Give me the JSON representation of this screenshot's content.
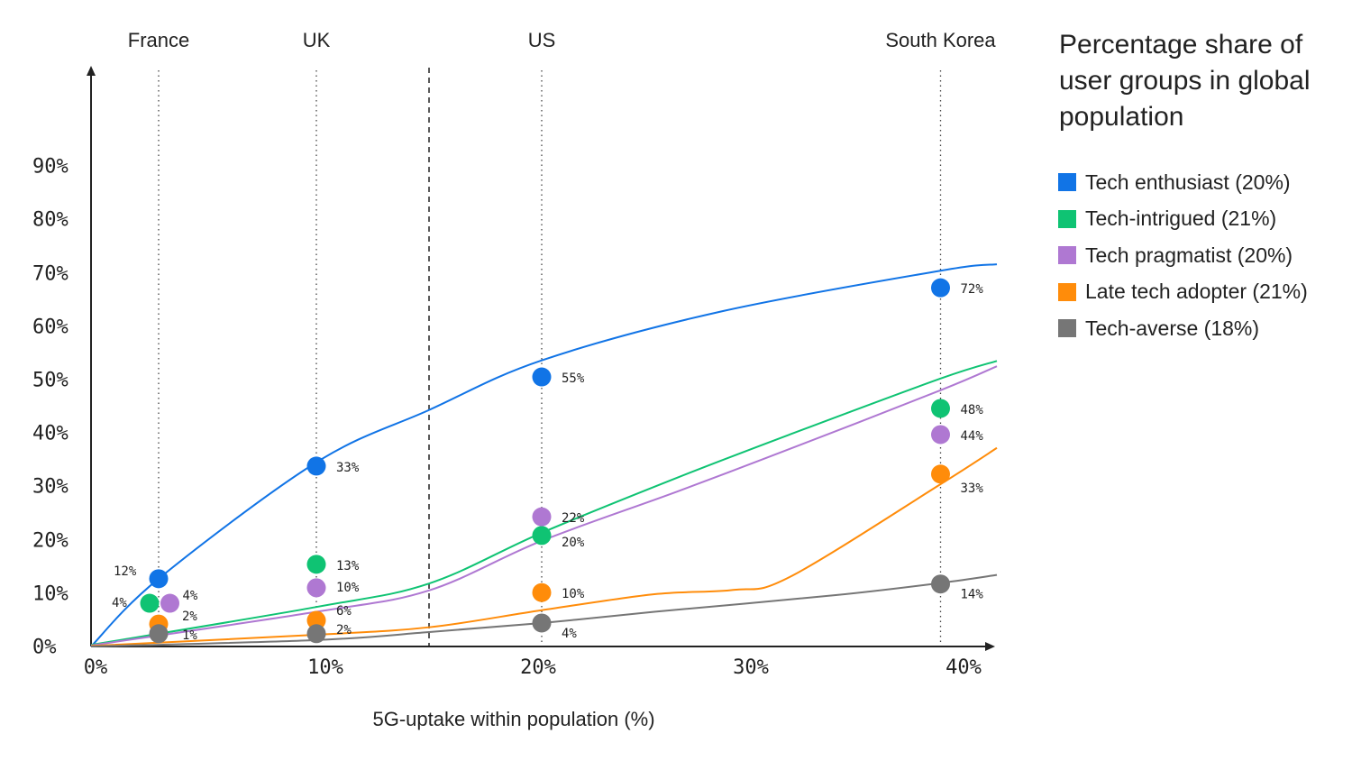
{
  "chart_data": {
    "type": "line",
    "xlabel": "5G-uptake within population (%)",
    "ylabel": "",
    "xlim": [
      0,
      40
    ],
    "ylim": [
      0,
      90
    ],
    "x_ticks": [
      "0%",
      "10%",
      "20%",
      "30%",
      "40%"
    ],
    "y_ticks": [
      "0%",
      "10%",
      "20%",
      "30%",
      "40%",
      "50%",
      "60%",
      "70%",
      "80%",
      "90%"
    ],
    "grid": false,
    "threshold_x": 15,
    "countries": [
      {
        "name": "France",
        "x": 3
      },
      {
        "name": "UK",
        "x": 10
      },
      {
        "name": "US",
        "x": 20
      },
      {
        "name": "South Korea",
        "x": 37.7
      }
    ],
    "legend": {
      "title": "Percentage share of user groups in global population",
      "placement": "right"
    },
    "series": [
      {
        "name": "Tech enthusiast (20%)",
        "color": "#1174e6",
        "curve": [
          [
            0,
            0
          ],
          [
            3,
            12.7
          ],
          [
            10,
            34.5
          ],
          [
            15,
            44.3
          ],
          [
            20,
            53.6
          ],
          [
            28,
            62.8
          ],
          [
            37.7,
            70.4
          ],
          [
            40.2,
            71.6
          ]
        ],
        "points": [
          {
            "x": 3,
            "y": 12.7,
            "label": "12%"
          },
          {
            "x": 10,
            "y": 33.8,
            "label": "33%"
          },
          {
            "x": 20,
            "y": 50.5,
            "label": "55%"
          },
          {
            "x": 37.7,
            "y": 67.2,
            "label": "72%"
          }
        ]
      },
      {
        "name": "Tech-intrigued (21%)",
        "color": "#0fc373",
        "curve": [
          [
            0,
            0.3
          ],
          [
            10,
            7.4
          ],
          [
            15,
            11.8
          ],
          [
            20,
            21.3
          ],
          [
            26,
            31.6
          ],
          [
            31,
            39.7
          ],
          [
            37.7,
            50.2
          ],
          [
            40.2,
            53.5
          ]
        ],
        "points": [
          {
            "x": 2.6,
            "y": 8.1,
            "label": "4%"
          },
          {
            "x": 10,
            "y": 15.4,
            "label": "13%"
          },
          {
            "x": 20,
            "y": 20.8,
            "label": "20%"
          },
          {
            "x": 37.7,
            "y": 44.6,
            "label": "48%"
          }
        ]
      },
      {
        "name": "Tech pragmatist (20%)",
        "color": "#af78d2",
        "curve": [
          [
            0,
            0.2
          ],
          [
            10,
            6.5
          ],
          [
            15,
            10.5
          ],
          [
            20,
            19.8
          ],
          [
            26,
            29
          ],
          [
            31,
            37
          ],
          [
            37.7,
            48
          ],
          [
            40.2,
            52.5
          ]
        ],
        "points": [
          {
            "x": 3.5,
            "y": 8.1,
            "label": "4%"
          },
          {
            "x": 10,
            "y": 11,
            "label": "10%"
          },
          {
            "x": 20,
            "y": 24.3,
            "label": "22%"
          },
          {
            "x": 37.7,
            "y": 39.7,
            "label": "44%"
          }
        ]
      },
      {
        "name": "Late tech adopter (21%)",
        "color": "#ff8c0a",
        "curve": [
          [
            0,
            0.1
          ],
          [
            10,
            2.2
          ],
          [
            15,
            3.6
          ],
          [
            20,
            6.8
          ],
          [
            25,
            9.8
          ],
          [
            28.5,
            10.6
          ],
          [
            31,
            13
          ],
          [
            37.7,
            30.4
          ],
          [
            40.2,
            37.2
          ]
        ],
        "points": [
          {
            "x": 3,
            "y": 4.2,
            "label": "2%"
          },
          {
            "x": 10,
            "y": 4.9,
            "label": "6%"
          },
          {
            "x": 20,
            "y": 10.1,
            "label": "10%"
          },
          {
            "x": 37.7,
            "y": 32.3,
            "label": "33%"
          }
        ]
      },
      {
        "name": "Tech-averse (18%)",
        "color": "#767676",
        "curve": [
          [
            0,
            0
          ],
          [
            10,
            1.2
          ],
          [
            15,
            2.7
          ],
          [
            20,
            4.4
          ],
          [
            25,
            6.5
          ],
          [
            33,
            9.6
          ],
          [
            37.7,
            11.9
          ],
          [
            40.2,
            13.4
          ]
        ],
        "points": [
          {
            "x": 3,
            "y": 2.4,
            "label": "1%"
          },
          {
            "x": 10,
            "y": 2.4,
            "label": "2%"
          },
          {
            "x": 20,
            "y": 4.4,
            "label": "4%"
          },
          {
            "x": 37.7,
            "y": 11.7,
            "label": "14%"
          }
        ]
      }
    ]
  }
}
